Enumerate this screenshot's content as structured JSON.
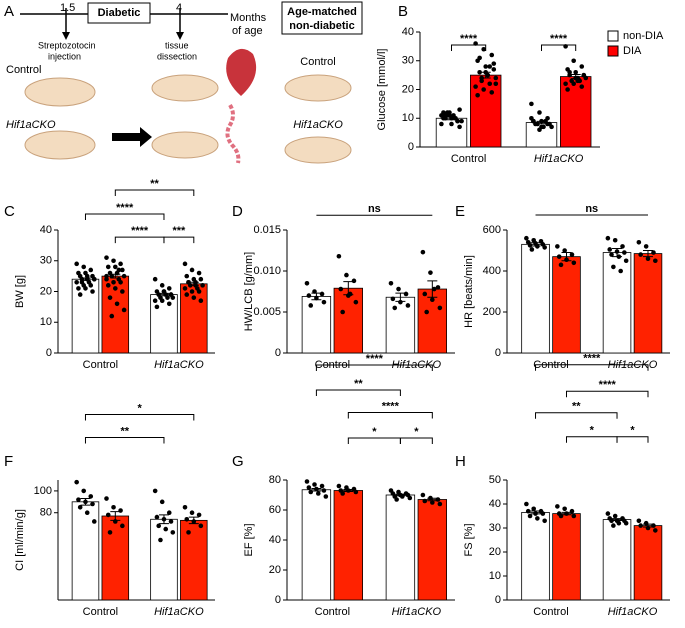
{
  "schematic": {
    "panel": "A",
    "time_start": "1.5",
    "time_end": "4",
    "phase": "Diabetic",
    "unit_line1": "Months",
    "unit_line2": "of age",
    "injection_line1": "Streptozotocin",
    "injection_line2": "injection",
    "dissection_line1": "tissue",
    "dissection_line2": "dissection",
    "group1": "Control",
    "group2": "Hif1aCKO",
    "matched_line1": "Age-matched",
    "matched_line2": "non-diabetic",
    "group3": "Control",
    "group4": "Hif1aCKO"
  },
  "chart_data": [
    {
      "type": "bar",
      "panel": "B",
      "ylabel": "Glucose [mmol/l]",
      "categories": [
        "Control",
        "Hif1aCKO"
      ],
      "legend": "right",
      "ylim": [
        0,
        40
      ],
      "yticks": [
        0,
        10,
        20,
        30,
        40
      ],
      "series": [
        {
          "name": "non-DIA",
          "color": "#ffffff",
          "values": [
            10,
            8.5
          ],
          "errors": [
            0.5,
            0.4
          ],
          "points": [
            [
              11,
              12,
              9,
              10,
              8,
              13,
              10,
              11,
              9,
              12,
              10,
              8,
              11,
              9,
              12,
              10,
              7,
              11
            ],
            [
              15,
              12,
              10,
              9,
              9,
              8,
              8,
              7,
              7,
              8,
              9,
              10,
              6,
              8,
              9,
              7
            ]
          ]
        },
        {
          "name": "DIA",
          "color": "#ff0000",
          "values": [
            25,
            24.5
          ],
          "errors": [
            1,
            0.7
          ],
          "points": [
            [
              36,
              34,
              32,
              30,
              28,
              27,
              26,
              25,
              24,
              23,
              22,
              21,
              20,
              19,
              18,
              26,
              29,
              31,
              25,
              22,
              24,
              28
            ],
            [
              35,
              30,
              28,
              27,
              26,
              25,
              25,
              24,
              24,
              23,
              23,
              22,
              22,
              21,
              20,
              24,
              25,
              26,
              23
            ]
          ]
        }
      ],
      "brackets": [
        {
          "label": "****",
          "bars": [
            0,
            1
          ],
          "y": 35.5
        },
        {
          "label": "****",
          "bars": [
            2,
            3
          ],
          "y": 35.5
        }
      ]
    },
    {
      "type": "bar",
      "panel": "C",
      "ylabel": "BW [g]",
      "categories": [
        "Control",
        "Hif1aCKO"
      ],
      "ylim": [
        0,
        40
      ],
      "yticks": [
        0,
        10,
        20,
        30,
        40
      ],
      "series": [
        {
          "color": "#ffffff",
          "values": [
            24,
            19
          ],
          "errors": [
            0.4,
            0.4
          ],
          "points": [
            [
              29,
              28,
              27,
              26,
              26,
              25,
              25,
              24,
              24,
              24,
              23,
              23,
              22,
              22,
              21,
              21,
              20,
              19,
              25,
              24,
              23
            ],
            [
              24,
              22,
              21,
              20,
              20,
              19,
              19,
              19,
              18,
              18,
              18,
              17,
              17,
              16,
              15,
              20,
              19
            ]
          ]
        },
        {
          "color": "#ff2200",
          "values": [
            25,
            22.5
          ],
          "errors": [
            0.6,
            0.5
          ],
          "points": [
            [
              31,
              30,
              29,
              28,
              28,
              27,
              26,
              26,
              25,
              25,
              24,
              24,
              23,
              23,
              22,
              21,
              20,
              18,
              16,
              14,
              12,
              27,
              25
            ],
            [
              29,
              27,
              26,
              25,
              24,
              24,
              23,
              23,
              22,
              22,
              21,
              21,
              20,
              20,
              19,
              18,
              17,
              23,
              22
            ]
          ]
        }
      ],
      "brackets": [
        {
          "label": "**",
          "bars": [
            1,
            3
          ],
          "y": 53
        },
        {
          "label": "****",
          "bars": [
            0,
            2
          ],
          "y": 45.2
        },
        {
          "label": "****",
          "bars": [
            1,
            2
          ],
          "y": 37.7
        },
        {
          "label": "***",
          "bars": [
            2,
            3
          ],
          "y": 37.7
        }
      ]
    },
    {
      "type": "bar",
      "panel": "D",
      "ylabel": "HW/LCB [g/mm]",
      "categories": [
        "Control",
        "Hif1aCKO"
      ],
      "ylim": [
        0,
        0.015
      ],
      "yticks": [
        0,
        0.005,
        {
          "value": 0.01,
          "label": "0.010"
        },
        0.015
      ],
      "series": [
        {
          "color": "#ffffff",
          "values": [
            0.0069,
            0.0068
          ],
          "errors": [
            0.0004,
            0.0005
          ],
          "points": [
            [
              0.0085,
              0.0075,
              0.0072,
              0.007,
              0.0067,
              0.0062,
              0.0058
            ],
            [
              0.0085,
              0.0078,
              0.0072,
              0.0066,
              0.0062,
              0.0058,
              0.0055
            ]
          ]
        },
        {
          "color": "#ff2200",
          "values": [
            0.0079,
            0.0078
          ],
          "errors": [
            0.0008,
            0.001
          ],
          "points": [
            [
              0.0118,
              0.0095,
              0.0088,
              0.0078,
              0.007,
              0.0062,
              0.005,
              0.0072
            ],
            [
              0.0123,
              0.0098,
              0.008,
              0.0072,
              0.0065,
              0.0055,
              0.005,
              0.0078
            ]
          ]
        }
      ],
      "brackets": [
        {
          "label": "ns",
          "bars": [
            0,
            3
          ],
          "y": 0.0168,
          "ticks": false
        }
      ]
    },
    {
      "type": "bar",
      "panel": "E",
      "ylabel": "HR [beats/min]",
      "categories": [
        "Control",
        "Hif1aCKO"
      ],
      "ylim": [
        0,
        600
      ],
      "yticks": [
        0,
        200,
        400,
        600
      ],
      "series": [
        {
          "color": "#ffffff",
          "values": [
            530,
            490
          ],
          "errors": [
            8,
            20
          ],
          "points": [
            [
              560,
              550,
              545,
              540,
              535,
              530,
              525,
              520,
              515,
              505
            ],
            [
              560,
              550,
              520,
              505,
              495,
              490,
              480,
              470,
              450,
              420,
              400
            ]
          ]
        },
        {
          "color": "#ff2200",
          "values": [
            470,
            485
          ],
          "errors": [
            20,
            15
          ],
          "points": [
            [
              520,
              500,
              480,
              470,
              455,
              440,
              430
            ],
            [
              540,
              520,
              490,
              480,
              460,
              450
            ]
          ]
        }
      ],
      "brackets": [
        {
          "label": "ns",
          "bars": [
            0,
            3
          ],
          "y": 673,
          "ticks": false
        }
      ]
    },
    {
      "type": "bar",
      "panel": "F",
      "ylabel": "CI [ml/min/g]",
      "categories": [
        "Control",
        "Hif1aCKO"
      ],
      "ylim": [
        0,
        110
      ],
      "yticks": [
        80,
        100
      ],
      "series": [
        {
          "color": "#ffffff",
          "values": [
            90,
            74
          ],
          "errors": [
            3,
            4
          ],
          "points": [
            [
              108,
              100,
              95,
              92,
              90,
              88,
              85,
              80,
              72
            ],
            [
              100,
              90,
              80,
              76,
              74,
              72,
              68,
              65,
              62,
              55
            ]
          ]
        },
        {
          "color": "#ff2200",
          "values": [
            77,
            73
          ],
          "errors": [
            4,
            3
          ],
          "points": [
            [
              93,
              85,
              82,
              78,
              72,
              68,
              62
            ],
            [
              85,
              80,
              78,
              74,
              72,
              68,
              62
            ]
          ]
        }
      ],
      "brackets": [
        {
          "label": "*",
          "bars": [
            0,
            3
          ],
          "y": 170
        },
        {
          "label": "**",
          "bars": [
            0,
            2
          ],
          "y": 149
        }
      ]
    },
    {
      "type": "bar",
      "panel": "G",
      "ylabel": "EF [%]",
      "categories": [
        "Control",
        "Hif1aCKO"
      ],
      "ylim": [
        0,
        80
      ],
      "yticks": [
        0,
        20,
        40,
        60,
        80
      ],
      "series": [
        {
          "color": "#ffffff",
          "values": [
            73.5,
            70
          ],
          "errors": [
            0.8,
            0.6
          ],
          "points": [
            [
              79,
              77,
              76,
              75,
              74,
              73,
              72,
              71,
              69
            ],
            [
              73,
              72,
              71,
              71,
              70,
              70,
              69,
              69,
              68,
              67
            ]
          ]
        },
        {
          "color": "#ff2200",
          "values": [
            73,
            67
          ],
          "errors": [
            0.7,
            0.8
          ],
          "points": [
            [
              76,
              75,
              74,
              73,
              73,
              72,
              71
            ],
            [
              70,
              68,
              67,
              66,
              65,
              64
            ]
          ]
        }
      ],
      "brackets": [
        {
          "label": "****",
          "bars": [
            0,
            3
          ],
          "y": 156.7
        },
        {
          "label": "**",
          "bars": [
            0,
            2
          ],
          "y": 140
        },
        {
          "label": "****",
          "bars": [
            1,
            3
          ],
          "y": 125
        },
        {
          "label": "*",
          "bars": [
            1,
            2
          ],
          "y": 108
        },
        {
          "label": "*",
          "bars": [
            2,
            3
          ],
          "y": 108
        }
      ]
    },
    {
      "type": "bar",
      "panel": "H",
      "ylabel": "FS [%]",
      "categories": [
        "Control",
        "Hif1aCKO"
      ],
      "ylim": [
        0,
        50
      ],
      "yticks": [
        0,
        10,
        20,
        30,
        40,
        50
      ],
      "series": [
        {
          "color": "#ffffff",
          "values": [
            36.5,
            33.5
          ],
          "errors": [
            0.6,
            0.4
          ],
          "points": [
            [
              40,
              38,
              37,
              37,
              36,
              36,
              35,
              34,
              33
            ],
            [
              36,
              35,
              34,
              34,
              33,
              33,
              33,
              32,
              32,
              31
            ]
          ]
        },
        {
          "color": "#ff2200",
          "values": [
            36,
            31
          ],
          "errors": [
            0.5,
            0.6
          ],
          "points": [
            [
              39,
              38,
              37,
              36,
              36,
              35,
              35
            ],
            [
              33,
              32,
              31,
              31,
              30,
              29
            ]
          ]
        }
      ],
      "brackets": [
        {
          "label": "****",
          "bars": [
            0,
            3
          ],
          "y": 98
        },
        {
          "label": "****",
          "bars": [
            1,
            3
          ],
          "y": 87
        },
        {
          "label": "**",
          "bars": [
            0,
            2
          ],
          "y": 78
        },
        {
          "label": "*",
          "bars": [
            1,
            2
          ],
          "y": 68
        },
        {
          "label": "*",
          "bars": [
            2,
            3
          ],
          "y": 68
        }
      ]
    }
  ]
}
